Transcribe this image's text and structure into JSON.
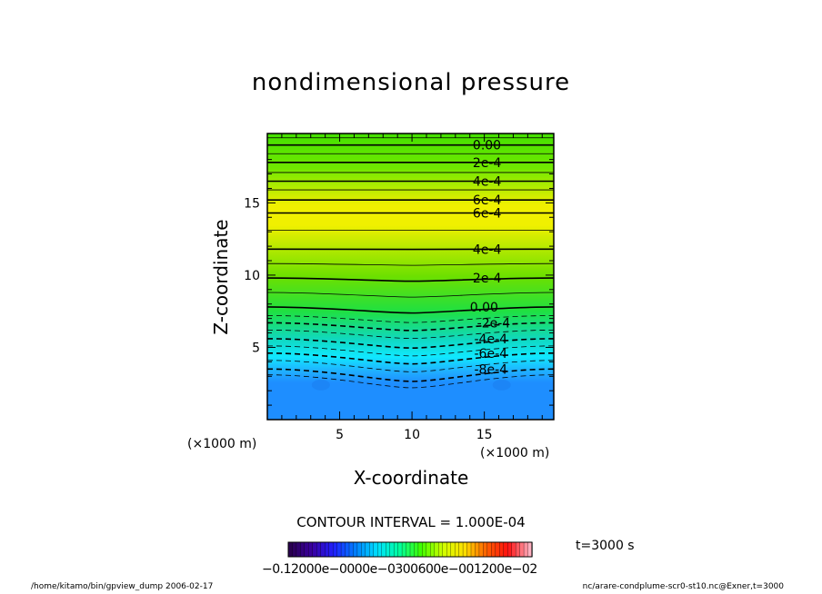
{
  "chart_data": {
    "type": "heatmap",
    "title": "nondimensional pressure",
    "xlabel": "X-coordinate",
    "ylabel": "Z-coordinate",
    "x_unit_label": "(×1000 m)",
    "xlim": [
      0,
      19.8
    ],
    "ylim": [
      0,
      19.8
    ],
    "x_ticks": [
      5,
      10,
      15
    ],
    "y_ticks": [
      5,
      10,
      15
    ],
    "contour_interval_label": "CONTOUR INTERVAL = 1.000E-04",
    "contour_labels": [
      {
        "text": "0.00",
        "x": 14.2,
        "z": 19.0
      },
      {
        "text": "2e-4",
        "x": 14.2,
        "z": 17.8
      },
      {
        "text": "4e-4",
        "x": 14.2,
        "z": 16.5
      },
      {
        "text": "6e-4",
        "x": 14.2,
        "z": 15.2
      },
      {
        "text": "6e-4",
        "x": 14.2,
        "z": 14.3
      },
      {
        "text": "4e-4",
        "x": 14.2,
        "z": 11.8
      },
      {
        "text": "2e-4",
        "x": 14.2,
        "z": 9.8
      },
      {
        "text": "0.00",
        "x": 14.0,
        "z": 7.8
      },
      {
        "text": "-2e-4",
        "x": 14.5,
        "z": 6.7
      },
      {
        "text": "-4e-4",
        "x": 14.3,
        "z": 5.6
      },
      {
        "text": "-6e-4",
        "x": 14.3,
        "z": 4.6
      },
      {
        "text": "-8e-4",
        "x": 14.3,
        "z": 3.5
      }
    ],
    "contour_levels": [
      {
        "level": 1,
        "z": 19.5
      },
      {
        "level": 0,
        "z": 19.0
      },
      {
        "level": 1,
        "z": 18.4
      },
      {
        "level": 2,
        "z": 17.8
      },
      {
        "level": 3,
        "z": 17.1
      },
      {
        "level": 4,
        "z": 16.5
      },
      {
        "level": 5,
        "z": 15.9
      },
      {
        "level": 6,
        "z": 15.2
      },
      {
        "level": 6,
        "z": 14.3
      },
      {
        "level": 5,
        "z": 13.1
      },
      {
        "level": 4,
        "z": 11.8
      },
      {
        "level": 3,
        "z": 10.8
      },
      {
        "level": 2,
        "z": 9.8
      },
      {
        "level": 1,
        "z": 8.8
      },
      {
        "level": 0,
        "z": 7.8
      },
      {
        "level": -1,
        "z": 7.2
      },
      {
        "level": -2,
        "z": 6.7
      },
      {
        "level": -3,
        "z": 6.2
      },
      {
        "level": -4,
        "z": 5.6
      },
      {
        "level": -5,
        "z": 5.1
      },
      {
        "level": -6,
        "z": 4.6
      },
      {
        "level": -7,
        "z": 4.1
      },
      {
        "level": -8,
        "z": 3.5
      },
      {
        "level": -9,
        "z": 3.1
      }
    ],
    "colorbar": {
      "min": -0.0012,
      "max": 0.0012,
      "n_colors": 60,
      "tick_labels_text": "−0.12000e−0000e−0300600e−001200e−02",
      "colors": [
        "#2a0050",
        "#3a00a0",
        "#2020ff",
        "#0080ff",
        "#00e0ff",
        "#00ffa0",
        "#40ff00",
        "#d0ff00",
        "#ffe000",
        "#ff6000",
        "#ff1010",
        "#ffb0c0"
      ]
    },
    "time_label": "t=3000 s",
    "field_colors": {
      "top": "#44e000",
      "upper_mid": "#70e800",
      "peak": "#f0f000",
      "mid": "#6ce000",
      "zero": "#20e040",
      "low1": "#10d8c0",
      "low2": "#10e8ff",
      "low3": "#20b0ff",
      "bottom": "#1e8eff"
    }
  },
  "footer": {
    "left": "/home/kitamo/bin/gpview_dump  2006-02-17",
    "right": "nc/arare-condplume-scr0-st10.nc@Exner,t=3000"
  }
}
